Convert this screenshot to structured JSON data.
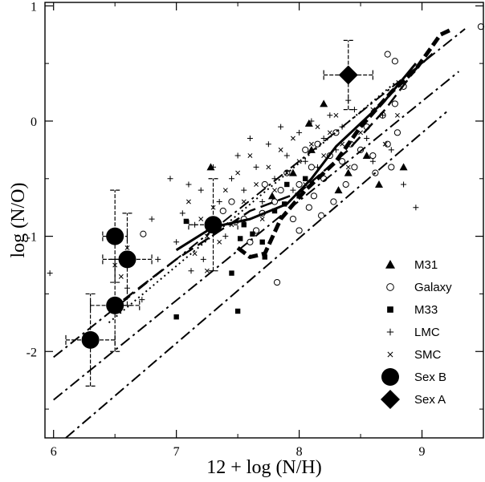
{
  "chart_data": {
    "type": "scatter",
    "title": "",
    "xlabel": "12 + log (N/H)",
    "ylabel": "log (N/O)",
    "xlim": [
      5.93,
      9.5
    ],
    "ylim": [
      -2.75,
      1.03
    ],
    "x_ticks": [
      6,
      7,
      8,
      9
    ],
    "y_ticks": [
      -2,
      -1,
      0,
      1
    ],
    "x_tick_labels": [
      "6",
      "7",
      "8",
      "9"
    ],
    "y_tick_labels": [
      "-2",
      "-1",
      "0",
      "1"
    ],
    "grid": false,
    "legend_position": "bottom-right",
    "legend": [
      {
        "label": "M31",
        "marker": "triangle"
      },
      {
        "label": "Galaxy",
        "marker": "open-circle"
      },
      {
        "label": "M33",
        "marker": "square"
      },
      {
        "label": "LMC",
        "marker": "plus"
      },
      {
        "label": "SMC",
        "marker": "cross"
      },
      {
        "label": "Sex B",
        "marker": "big-circle"
      },
      {
        "label": "Sex A",
        "marker": "diamond"
      }
    ],
    "series": [
      {
        "name": "M31",
        "marker": "triangle",
        "points": [
          [
            7.28,
            -0.4
          ],
          [
            7.78,
            -0.65
          ],
          [
            7.95,
            -0.45
          ],
          [
            8.1,
            -0.25
          ],
          [
            8.32,
            -0.6
          ],
          [
            8.4,
            -0.45
          ],
          [
            8.55,
            -0.3
          ],
          [
            8.65,
            -0.55
          ],
          [
            8.85,
            -0.4
          ],
          [
            8.08,
            -0.02
          ],
          [
            8.2,
            0.15
          ]
        ]
      },
      {
        "name": "Galaxy",
        "marker": "open-circle",
        "points": [
          [
            6.73,
            -0.98
          ],
          [
            7.45,
            -0.7
          ],
          [
            7.55,
            -0.85
          ],
          [
            7.6,
            -1.05
          ],
          [
            7.7,
            -0.8
          ],
          [
            7.72,
            -0.55
          ],
          [
            7.8,
            -0.7
          ],
          [
            7.82,
            -1.4
          ],
          [
            7.85,
            -0.6
          ],
          [
            7.9,
            -0.45
          ],
          [
            7.95,
            -0.85
          ],
          [
            8.0,
            -0.55
          ],
          [
            8.05,
            -0.25
          ],
          [
            8.1,
            -0.4
          ],
          [
            8.12,
            -0.65
          ],
          [
            8.15,
            -0.2
          ],
          [
            8.2,
            -0.5
          ],
          [
            8.25,
            -0.3
          ],
          [
            8.28,
            -0.7
          ],
          [
            8.3,
            -0.1
          ],
          [
            8.35,
            -0.35
          ],
          [
            8.38,
            -0.55
          ],
          [
            8.42,
            -0.2
          ],
          [
            8.45,
            -0.4
          ],
          [
            8.5,
            -0.25
          ],
          [
            8.55,
            -0.05
          ],
          [
            8.6,
            -0.3
          ],
          [
            8.62,
            -0.45
          ],
          [
            8.68,
            0.05
          ],
          [
            8.72,
            -0.2
          ],
          [
            8.75,
            -0.4
          ],
          [
            8.78,
            0.15
          ],
          [
            8.8,
            -0.1
          ],
          [
            8.85,
            0.3
          ],
          [
            8.72,
            0.58
          ],
          [
            8.78,
            0.52
          ],
          [
            9.48,
            0.82
          ],
          [
            7.38,
            -0.78
          ],
          [
            7.65,
            -0.95
          ],
          [
            8.0,
            -0.95
          ],
          [
            8.08,
            -0.75
          ],
          [
            8.18,
            -0.82
          ]
        ]
      },
      {
        "name": "M33",
        "marker": "square",
        "points": [
          [
            7.0,
            -1.7
          ],
          [
            7.08,
            -0.87
          ],
          [
            7.28,
            -0.95
          ],
          [
            7.45,
            -1.32
          ],
          [
            7.5,
            -1.65
          ],
          [
            7.52,
            -1.02
          ],
          [
            7.55,
            -0.9
          ],
          [
            7.62,
            -0.98
          ],
          [
            7.7,
            -1.05
          ],
          [
            7.72,
            -1.18
          ],
          [
            7.8,
            -0.78
          ],
          [
            7.88,
            -0.72
          ],
          [
            7.9,
            -0.55
          ],
          [
            8.0,
            -0.65
          ],
          [
            8.05,
            -0.5
          ]
        ]
      },
      {
        "name": "LMC",
        "marker": "plus",
        "points": [
          [
            5.97,
            -1.32
          ],
          [
            6.8,
            -0.85
          ],
          [
            6.95,
            -0.5
          ],
          [
            7.05,
            -0.8
          ],
          [
            7.1,
            -0.55
          ],
          [
            7.15,
            -0.9
          ],
          [
            7.2,
            -0.6
          ],
          [
            7.22,
            -1.2
          ],
          [
            7.3,
            -0.4
          ],
          [
            7.35,
            -0.7
          ],
          [
            7.4,
            -1.0
          ],
          [
            7.45,
            -0.5
          ],
          [
            7.5,
            -0.3
          ],
          [
            7.55,
            -0.6
          ],
          [
            7.6,
            -0.15
          ],
          [
            7.65,
            -0.4
          ],
          [
            7.7,
            -0.7
          ],
          [
            7.75,
            -0.2
          ],
          [
            7.8,
            -0.5
          ],
          [
            7.85,
            -0.05
          ],
          [
            7.9,
            -0.3
          ],
          [
            7.95,
            -0.6
          ],
          [
            8.0,
            -0.1
          ],
          [
            8.05,
            -0.35
          ],
          [
            8.1,
            0.0
          ],
          [
            8.15,
            -0.4
          ],
          [
            8.2,
            -0.15
          ],
          [
            8.25,
            0.05
          ],
          [
            8.3,
            -0.25
          ],
          [
            8.35,
            -0.05
          ],
          [
            8.45,
            0.1
          ],
          [
            8.55,
            -0.15
          ],
          [
            8.6,
            -0.35
          ],
          [
            8.68,
            0.05
          ],
          [
            8.75,
            -0.25
          ],
          [
            8.85,
            -0.55
          ],
          [
            8.95,
            -0.75
          ],
          [
            7.0,
            -1.05
          ],
          [
            7.12,
            -1.3
          ],
          [
            6.85,
            -1.2
          ],
          [
            6.6,
            -1.45
          ],
          [
            6.72,
            -1.55
          ],
          [
            8.4,
            0.18
          ]
        ]
      },
      {
        "name": "SMC",
        "marker": "cross",
        "points": [
          [
            6.5,
            -1.25
          ],
          [
            6.55,
            -1.35
          ],
          [
            6.6,
            -1.1
          ],
          [
            7.1,
            -0.7
          ],
          [
            7.2,
            -0.85
          ],
          [
            7.25,
            -1.0
          ],
          [
            7.3,
            -0.75
          ],
          [
            7.35,
            -1.05
          ],
          [
            7.4,
            -0.6
          ],
          [
            7.45,
            -0.9
          ],
          [
            7.5,
            -0.45
          ],
          [
            7.55,
            -0.7
          ],
          [
            7.6,
            -0.3
          ],
          [
            7.65,
            -0.55
          ],
          [
            7.7,
            -0.85
          ],
          [
            7.75,
            -0.4
          ],
          [
            7.8,
            -0.6
          ],
          [
            7.85,
            -0.25
          ],
          [
            7.9,
            -0.45
          ],
          [
            7.95,
            -0.15
          ],
          [
            8.0,
            -0.35
          ],
          [
            8.05,
            -0.55
          ],
          [
            8.1,
            -0.2
          ],
          [
            8.15,
            -0.05
          ],
          [
            8.2,
            -0.3
          ],
          [
            8.25,
            -0.1
          ],
          [
            8.3,
            0.05
          ],
          [
            8.35,
            -0.2
          ],
          [
            8.4,
            -0.4
          ],
          [
            8.5,
            -0.1
          ],
          [
            8.6,
            0.1
          ],
          [
            8.7,
            -0.2
          ],
          [
            8.8,
            0.05
          ],
          [
            7.15,
            -1.15
          ],
          [
            7.25,
            -1.3
          ]
        ]
      },
      {
        "name": "Sex B",
        "marker": "big-circle",
        "points": [
          {
            "x": 6.5,
            "y": -1.0,
            "xerr": 0.1,
            "yerr": 0.4
          },
          {
            "x": 6.6,
            "y": -1.2,
            "xerr": 0.2,
            "yerr": 0.4
          },
          {
            "x": 6.5,
            "y": -1.6,
            "xerr": 0.2,
            "yerr": 0.4
          },
          {
            "x": 6.3,
            "y": -1.9,
            "xerr": 0.2,
            "yerr": 0.4
          },
          {
            "x": 7.3,
            "y": -0.9,
            "xerr": 0.2,
            "yerr": 0.4
          }
        ]
      },
      {
        "name": "Sex A",
        "marker": "diamond",
        "points": [
          {
            "x": 8.4,
            "y": 0.4,
            "xerr": 0.2,
            "yerr": 0.3
          }
        ]
      }
    ],
    "model_lines": [
      {
        "style": "dash-dot",
        "points": [
          [
            6.0,
            -2.05
          ],
          [
            9.35,
            0.8
          ]
        ]
      },
      {
        "style": "dash-dot",
        "points": [
          [
            6.0,
            -2.42
          ],
          [
            9.3,
            0.43
          ]
        ]
      },
      {
        "style": "dash-dot",
        "points": [
          [
            6.1,
            -2.75
          ],
          [
            9.2,
            0.08
          ]
        ]
      },
      {
        "style": "dotted",
        "points": [
          [
            6.45,
            -1.75
          ],
          [
            8.8,
            0.35
          ]
        ]
      },
      {
        "style": "dashed",
        "points": [
          [
            6.45,
            -1.65
          ],
          [
            7.0,
            -1.2
          ],
          [
            7.6,
            -0.78
          ],
          [
            8.0,
            -0.62
          ],
          [
            8.4,
            -0.25
          ],
          [
            8.7,
            0.1
          ],
          [
            8.95,
            0.45
          ],
          [
            9.1,
            0.6
          ]
        ]
      },
      {
        "style": "solid",
        "points": [
          [
            7.0,
            -1.12
          ],
          [
            7.3,
            -0.92
          ],
          [
            7.6,
            -0.85
          ],
          [
            7.9,
            -0.72
          ],
          [
            8.1,
            -0.5
          ],
          [
            8.3,
            -0.22
          ],
          [
            8.5,
            -0.02
          ],
          [
            8.7,
            0.18
          ],
          [
            8.95,
            0.5
          ]
        ]
      },
      {
        "style": "thick-dashed",
        "points": [
          [
            7.5,
            -1.1
          ],
          [
            7.6,
            -1.18
          ],
          [
            7.72,
            -1.15
          ],
          [
            7.85,
            -0.85
          ],
          [
            8.05,
            -0.6
          ],
          [
            8.3,
            -0.35
          ],
          [
            8.5,
            -0.05
          ],
          [
            8.75,
            0.25
          ],
          [
            8.95,
            0.45
          ],
          [
            9.15,
            0.75
          ],
          [
            9.25,
            0.8
          ]
        ]
      }
    ]
  }
}
